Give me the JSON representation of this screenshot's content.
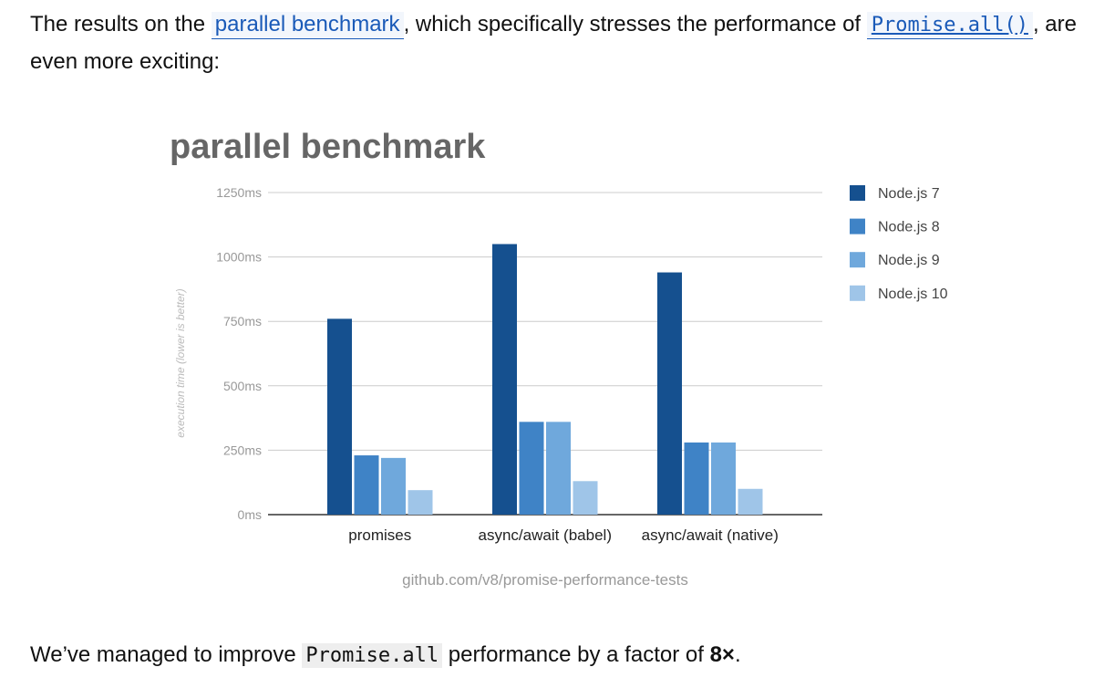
{
  "intro": {
    "before_link": "The results on the ",
    "link_text": "parallel benchmark",
    "middle": ", which specifically stresses the performance of ",
    "code_link": "Promise.all()",
    "after": ", are even more exciting:"
  },
  "outro": {
    "before_code": "We’ve managed to improve ",
    "code": "Promise.all",
    "middle": " performance by a factor of ",
    "factor": "8×",
    "end": "."
  },
  "colors": {
    "node7": "#15508f",
    "node8": "#3f83c6",
    "node9": "#6fa8dc",
    "node10": "#9fc5e8",
    "grid": "#cccccc",
    "title": "#666666",
    "tick": "#999999"
  },
  "chart_data": {
    "type": "bar",
    "title": "parallel benchmark",
    "ylabel": "execution time (lower is better)",
    "xlabel": "",
    "ylim": [
      0,
      1250
    ],
    "yticks": [
      "0ms",
      "250ms",
      "500ms",
      "750ms",
      "1000ms",
      "1250ms"
    ],
    "ytick_values": [
      0,
      250,
      500,
      750,
      1000,
      1250
    ],
    "categories": [
      "promises",
      "async/await (babel)",
      "async/await (native)"
    ],
    "series": [
      {
        "name": "Node.js 7",
        "values": [
          760,
          1050,
          940
        ]
      },
      {
        "name": "Node.js 8",
        "values": [
          230,
          360,
          280
        ]
      },
      {
        "name": "Node.js 9",
        "values": [
          220,
          360,
          280
        ]
      },
      {
        "name": "Node.js 10",
        "values": [
          95,
          130,
          100
        ]
      }
    ],
    "legend_position": "right",
    "source": "github.com/v8/promise-performance-tests"
  }
}
